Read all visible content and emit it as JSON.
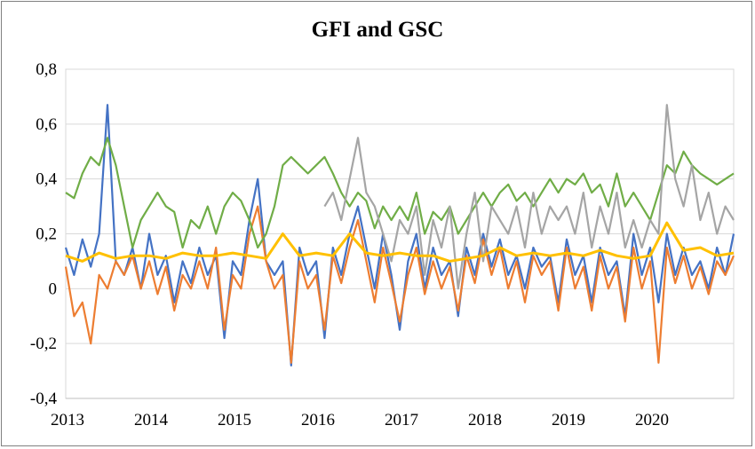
{
  "chart_data": {
    "type": "line",
    "title": "GFI and GSC",
    "xlabel": "",
    "ylabel": "",
    "ylim": [
      -0.4,
      0.8
    ],
    "y_ticks": [
      "-0,4",
      "-0,2",
      "0",
      "0,2",
      "0,4",
      "0,6",
      "0,8"
    ],
    "y_tick_values": [
      -0.4,
      -0.2,
      0,
      0.2,
      0.4,
      0.6,
      0.8
    ],
    "x_ticks": [
      "2013",
      "2014",
      "2015",
      "2016",
      "2017",
      "2018",
      "2019",
      "2020"
    ],
    "x_tick_values": [
      2013,
      2014,
      2015,
      2016,
      2017,
      2018,
      2019,
      2020
    ],
    "xlim": [
      2013,
      2021
    ],
    "grid": "horizontal",
    "legend": "none",
    "series": [
      {
        "color": "#4472C4",
        "x": [
          2013.0,
          2013.1,
          2013.2,
          2013.3,
          2013.4,
          2013.5,
          2013.6,
          2013.7,
          2013.8,
          2013.9,
          2014.0,
          2014.1,
          2014.2,
          2014.3,
          2014.4,
          2014.5,
          2014.6,
          2014.7,
          2014.8,
          2014.9,
          2015.0,
          2015.1,
          2015.2,
          2015.3,
          2015.4,
          2015.5,
          2015.6,
          2015.7,
          2015.8,
          2015.9,
          2016.0,
          2016.1,
          2016.2,
          2016.3,
          2016.4,
          2016.5,
          2016.6,
          2016.7,
          2016.8,
          2016.9,
          2017.0,
          2017.1,
          2017.2,
          2017.3,
          2017.4,
          2017.5,
          2017.6,
          2017.7,
          2017.8,
          2017.9,
          2018.0,
          2018.1,
          2018.2,
          2018.3,
          2018.4,
          2018.5,
          2018.6,
          2018.7,
          2018.8,
          2018.9,
          2019.0,
          2019.1,
          2019.2,
          2019.3,
          2019.4,
          2019.5,
          2019.6,
          2019.7,
          2019.8,
          2019.9,
          2020.0,
          2020.1,
          2020.2,
          2020.3,
          2020.4,
          2020.5,
          2020.6,
          2020.7,
          2020.8,
          2020.9,
          2021.0
        ],
        "y": [
          0.15,
          0.05,
          0.18,
          0.08,
          0.2,
          0.67,
          0.1,
          0.05,
          0.15,
          0.0,
          0.2,
          0.05,
          0.12,
          -0.05,
          0.1,
          0.02,
          0.15,
          0.05,
          0.12,
          -0.18,
          0.1,
          0.05,
          0.25,
          0.4,
          0.1,
          0.05,
          0.1,
          -0.28,
          0.15,
          0.05,
          0.1,
          -0.18,
          0.15,
          0.05,
          0.2,
          0.3,
          0.15,
          0.0,
          0.2,
          0.05,
          -0.15,
          0.1,
          0.2,
          0.0,
          0.15,
          0.05,
          0.1,
          -0.1,
          0.15,
          0.05,
          0.2,
          0.08,
          0.18,
          0.05,
          0.12,
          0.0,
          0.15,
          0.08,
          0.12,
          -0.05,
          0.18,
          0.05,
          0.12,
          -0.05,
          0.15,
          0.05,
          0.1,
          -0.1,
          0.2,
          0.05,
          0.15,
          -0.05,
          0.2,
          0.05,
          0.15,
          0.05,
          0.1,
          0.0,
          0.15,
          0.05,
          0.2
        ]
      },
      {
        "color": "#ED7D31",
        "x": [
          2013.0,
          2013.1,
          2013.2,
          2013.3,
          2013.4,
          2013.5,
          2013.6,
          2013.7,
          2013.8,
          2013.9,
          2014.0,
          2014.1,
          2014.2,
          2014.3,
          2014.4,
          2014.5,
          2014.6,
          2014.7,
          2014.8,
          2014.9,
          2015.0,
          2015.1,
          2015.2,
          2015.3,
          2015.4,
          2015.5,
          2015.6,
          2015.7,
          2015.8,
          2015.9,
          2016.0,
          2016.1,
          2016.2,
          2016.3,
          2016.4,
          2016.5,
          2016.6,
          2016.7,
          2016.8,
          2016.9,
          2017.0,
          2017.1,
          2017.2,
          2017.3,
          2017.4,
          2017.5,
          2017.6,
          2017.7,
          2017.8,
          2017.9,
          2018.0,
          2018.1,
          2018.2,
          2018.3,
          2018.4,
          2018.5,
          2018.6,
          2018.7,
          2018.8,
          2018.9,
          2019.0,
          2019.1,
          2019.2,
          2019.3,
          2019.4,
          2019.5,
          2019.6,
          2019.7,
          2019.8,
          2019.9,
          2020.0,
          2020.1,
          2020.2,
          2020.3,
          2020.4,
          2020.5,
          2020.6,
          2020.7,
          2020.8,
          2020.9,
          2021.0
        ],
        "y": [
          0.08,
          -0.1,
          -0.05,
          -0.2,
          0.05,
          0.0,
          0.1,
          0.05,
          0.12,
          0.0,
          0.1,
          -0.02,
          0.08,
          -0.08,
          0.05,
          0.0,
          0.1,
          0.0,
          0.15,
          -0.15,
          0.05,
          0.0,
          0.2,
          0.3,
          0.1,
          0.0,
          0.05,
          -0.27,
          0.1,
          0.0,
          0.05,
          -0.15,
          0.12,
          0.02,
          0.15,
          0.25,
          0.1,
          -0.05,
          0.15,
          0.02,
          -0.12,
          0.05,
          0.15,
          -0.02,
          0.1,
          0.0,
          0.08,
          -0.08,
          0.12,
          0.02,
          0.18,
          0.05,
          0.15,
          0.0,
          0.1,
          -0.05,
          0.12,
          0.05,
          0.1,
          -0.08,
          0.15,
          0.0,
          0.08,
          -0.08,
          0.12,
          0.0,
          0.08,
          -0.12,
          0.15,
          0.0,
          0.1,
          -0.27,
          0.15,
          0.02,
          0.12,
          0.0,
          0.08,
          -0.02,
          0.1,
          0.05,
          0.12
        ]
      },
      {
        "color": "#70AD47",
        "x": [
          2013.0,
          2013.1,
          2013.2,
          2013.3,
          2013.4,
          2013.5,
          2013.6,
          2013.7,
          2013.8,
          2013.9,
          2014.0,
          2014.1,
          2014.2,
          2014.3,
          2014.4,
          2014.5,
          2014.6,
          2014.7,
          2014.8,
          2014.9,
          2015.0,
          2015.1,
          2015.2,
          2015.3,
          2015.4,
          2015.5,
          2015.6,
          2015.7,
          2015.8,
          2015.9,
          2016.0,
          2016.1,
          2016.2,
          2016.3,
          2016.4,
          2016.5,
          2016.6,
          2016.7,
          2016.8,
          2016.9,
          2017.0,
          2017.1,
          2017.2,
          2017.3,
          2017.4,
          2017.5,
          2017.6,
          2017.7,
          2017.8,
          2017.9,
          2018.0,
          2018.1,
          2018.2,
          2018.3,
          2018.4,
          2018.5,
          2018.6,
          2018.7,
          2018.8,
          2018.9,
          2019.0,
          2019.1,
          2019.2,
          2019.3,
          2019.4,
          2019.5,
          2019.6,
          2019.7,
          2019.8,
          2019.9,
          2020.0,
          2020.1,
          2020.2,
          2020.3,
          2020.4,
          2020.5,
          2020.6,
          2020.7,
          2020.8,
          2020.9,
          2021.0
        ],
        "y": [
          0.35,
          0.33,
          0.42,
          0.48,
          0.45,
          0.55,
          0.45,
          0.3,
          0.15,
          0.25,
          0.3,
          0.35,
          0.3,
          0.28,
          0.15,
          0.25,
          0.22,
          0.3,
          0.2,
          0.3,
          0.35,
          0.32,
          0.25,
          0.15,
          0.2,
          0.3,
          0.45,
          0.48,
          0.45,
          0.42,
          0.45,
          0.48,
          0.42,
          0.35,
          0.3,
          0.35,
          0.32,
          0.22,
          0.3,
          0.25,
          0.3,
          0.25,
          0.35,
          0.2,
          0.28,
          0.25,
          0.3,
          0.2,
          0.25,
          0.3,
          0.35,
          0.3,
          0.35,
          0.38,
          0.32,
          0.35,
          0.3,
          0.35,
          0.4,
          0.35,
          0.4,
          0.38,
          0.42,
          0.35,
          0.38,
          0.3,
          0.42,
          0.3,
          0.35,
          0.3,
          0.25,
          0.35,
          0.45,
          0.42,
          0.5,
          0.45,
          0.42,
          0.4,
          0.38,
          0.4,
          0.42
        ]
      },
      {
        "color": "#A5A5A5",
        "x": [
          2016.1,
          2016.2,
          2016.3,
          2016.4,
          2016.5,
          2016.6,
          2016.7,
          2016.8,
          2016.9,
          2017.0,
          2017.1,
          2017.2,
          2017.3,
          2017.4,
          2017.5,
          2017.6,
          2017.7,
          2017.8,
          2017.9,
          2018.0,
          2018.1,
          2018.2,
          2018.3,
          2018.4,
          2018.5,
          2018.6,
          2018.7,
          2018.8,
          2018.9,
          2019.0,
          2019.1,
          2019.2,
          2019.3,
          2019.4,
          2019.5,
          2019.6,
          2019.7,
          2019.8,
          2019.9,
          2020.0,
          2020.1,
          2020.2,
          2020.3,
          2020.4,
          2020.5,
          2020.6,
          2020.7,
          2020.8,
          2020.9,
          2021.0
        ],
        "y": [
          0.3,
          0.35,
          0.25,
          0.4,
          0.55,
          0.35,
          0.3,
          0.2,
          0.1,
          0.25,
          0.2,
          0.3,
          0.05,
          0.25,
          0.15,
          0.3,
          0.0,
          0.2,
          0.35,
          0.1,
          0.3,
          0.25,
          0.2,
          0.3,
          0.15,
          0.35,
          0.2,
          0.3,
          0.25,
          0.3,
          0.2,
          0.35,
          0.15,
          0.3,
          0.2,
          0.35,
          0.15,
          0.25,
          0.15,
          0.25,
          0.2,
          0.67,
          0.4,
          0.3,
          0.45,
          0.25,
          0.35,
          0.2,
          0.3,
          0.25
        ]
      },
      {
        "color": "#FFC000",
        "x": [
          2013.0,
          2013.2,
          2013.4,
          2013.6,
          2013.8,
          2014.0,
          2014.2,
          2014.4,
          2014.6,
          2014.8,
          2015.0,
          2015.2,
          2015.4,
          2015.6,
          2015.8,
          2016.0,
          2016.2,
          2016.4,
          2016.6,
          2016.8,
          2017.0,
          2017.2,
          2017.4,
          2017.6,
          2017.8,
          2018.0,
          2018.2,
          2018.4,
          2018.6,
          2018.8,
          2019.0,
          2019.2,
          2019.4,
          2019.6,
          2019.8,
          2020.0,
          2020.2,
          2020.4,
          2020.6,
          2020.8,
          2021.0
        ],
        "y": [
          0.12,
          0.1,
          0.13,
          0.11,
          0.12,
          0.12,
          0.11,
          0.13,
          0.12,
          0.12,
          0.13,
          0.12,
          0.11,
          0.2,
          0.12,
          0.13,
          0.12,
          0.2,
          0.13,
          0.12,
          0.13,
          0.12,
          0.12,
          0.1,
          0.11,
          0.12,
          0.15,
          0.12,
          0.13,
          0.12,
          0.13,
          0.12,
          0.14,
          0.12,
          0.11,
          0.12,
          0.24,
          0.14,
          0.15,
          0.12,
          0.13
        ]
      }
    ]
  }
}
